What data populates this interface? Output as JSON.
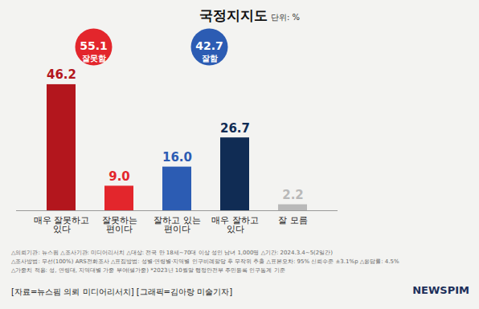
{
  "chart_data": {
    "type": "bar",
    "title": "국정지지도",
    "subtitle": "단위: %",
    "categories": [
      "매우 잘못하고 있다",
      "잘못하는 편이다",
      "잘하고 있는 편이다",
      "매우 잘하고 있다",
      "잘 모름"
    ],
    "values": [
      46.2,
      9.0,
      16.0,
      26.7,
      2.2
    ],
    "value_labels": [
      "46.2",
      "9.0",
      "16.0",
      "26.7",
      "2.2"
    ],
    "colors": [
      "#b3161d",
      "#e3262c",
      "#2c5cb3",
      "#102c54",
      "#b9b9b9"
    ],
    "ylim": [
      0,
      50
    ],
    "data_labels": true,
    "tick_labels": "x",
    "groups": [
      {
        "name": "잘못함",
        "value": 55.1,
        "color": "#e3262c"
      },
      {
        "name": "잘함",
        "value": 42.7,
        "color": "#2c5cb3"
      }
    ],
    "notes": [
      "△의뢰기관: 뉴스핌 △조사기관: 미디어리서치 △대상: 전국 만 18세~70대 이상 성인 남녀 1,000명 △기간: 2024.3.4~5(2일간)",
      "△조사방법: 무선(100%) ARS전화조사 △표집방법: 성별·연령별·지역별 인구비례할당 후 무작위 추출 △표본오차: 95% 신뢰수준 ±3.1%p △응답률: 4.5%",
      "△가중치 적용: 성, 연령대, 지역대별 가중 부여(셀가중) *2023년 10월말 행정안전부 주민등록 인구통계 기준"
    ],
    "source": "[자료=뉴스핌 의뢰 미디어리서치] [그래픽=김아랑 미술기자]",
    "logo": "NEWSPIM"
  }
}
